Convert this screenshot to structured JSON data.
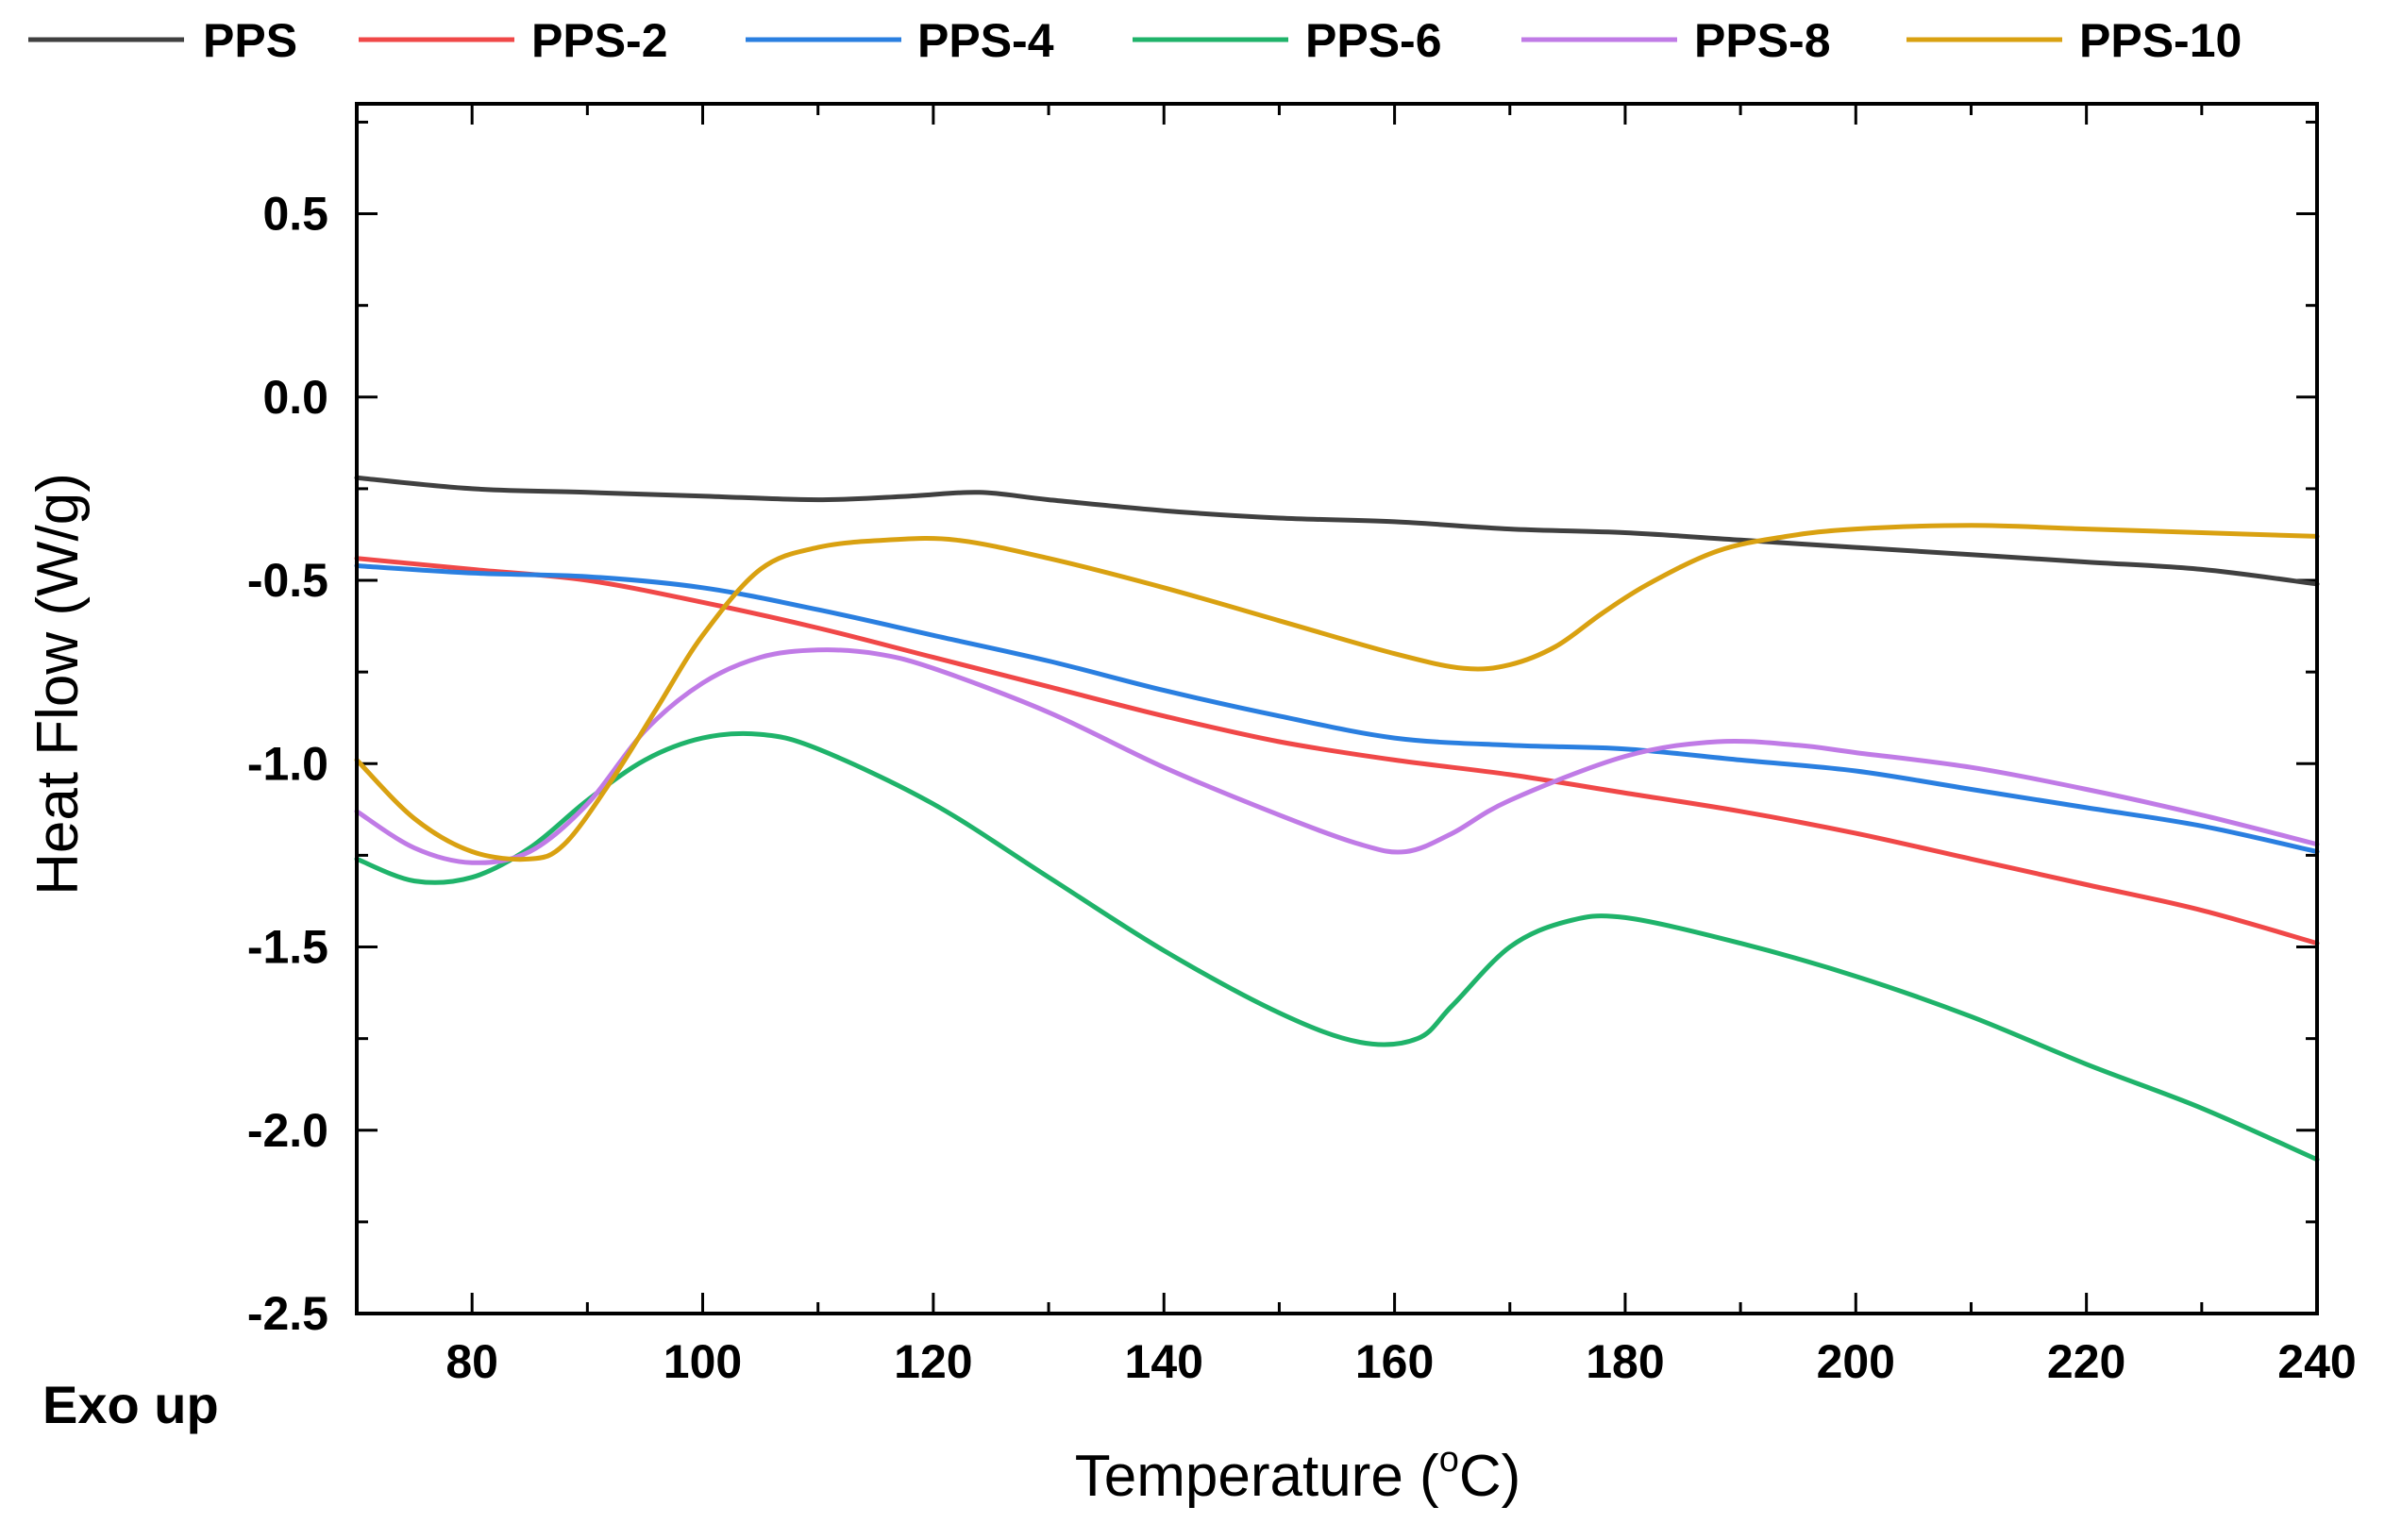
{
  "chart_data": {
    "type": "line",
    "title": "",
    "xlabel": "Temperature (",
    "xlabel_sup": "o",
    "xlabel_suffix": "C)",
    "ylabel": "Heat Flow (W/g)",
    "annotation": "Exo up",
    "xlim": [
      70,
      240
    ],
    "ylim": [
      -2.5,
      0.8
    ],
    "x_ticks": [
      80,
      100,
      120,
      140,
      160,
      180,
      200,
      220,
      240
    ],
    "y_ticks": [
      -2.5,
      -2.0,
      -1.5,
      -1.0,
      -0.5,
      0.0,
      0.5
    ],
    "x_tick_labels": [
      "80",
      "100",
      "120",
      "140",
      "160",
      "180",
      "200",
      "220",
      "240"
    ],
    "y_tick_labels": [
      "-2.5",
      "-2.0",
      "-1.5",
      "-1.0",
      "-0.5",
      "0.0",
      "0.5"
    ],
    "legend_position": "top",
    "series": [
      {
        "name": "PPS",
        "color": "#404040",
        "points": [
          [
            70,
            -0.22
          ],
          [
            80,
            -0.25
          ],
          [
            90,
            -0.26
          ],
          [
            100,
            -0.27
          ],
          [
            110,
            -0.28
          ],
          [
            118,
            -0.27
          ],
          [
            124,
            -0.26
          ],
          [
            130,
            -0.28
          ],
          [
            140,
            -0.31
          ],
          [
            150,
            -0.33
          ],
          [
            160,
            -0.34
          ],
          [
            170,
            -0.36
          ],
          [
            180,
            -0.37
          ],
          [
            190,
            -0.39
          ],
          [
            200,
            -0.41
          ],
          [
            210,
            -0.43
          ],
          [
            220,
            -0.45
          ],
          [
            230,
            -0.47
          ],
          [
            240,
            -0.51
          ]
        ]
      },
      {
        "name": "PPS-2",
        "color": "#f04848",
        "points": [
          [
            70,
            -0.44
          ],
          [
            80,
            -0.47
          ],
          [
            90,
            -0.5
          ],
          [
            100,
            -0.56
          ],
          [
            110,
            -0.63
          ],
          [
            120,
            -0.71
          ],
          [
            130,
            -0.79
          ],
          [
            140,
            -0.87
          ],
          [
            150,
            -0.94
          ],
          [
            160,
            -0.99
          ],
          [
            170,
            -1.03
          ],
          [
            180,
            -1.08
          ],
          [
            190,
            -1.13
          ],
          [
            200,
            -1.19
          ],
          [
            210,
            -1.26
          ],
          [
            220,
            -1.33
          ],
          [
            230,
            -1.4
          ],
          [
            240,
            -1.49
          ]
        ]
      },
      {
        "name": "PPS-4",
        "color": "#2a7fe0",
        "points": [
          [
            70,
            -0.46
          ],
          [
            80,
            -0.48
          ],
          [
            90,
            -0.49
          ],
          [
            100,
            -0.52
          ],
          [
            110,
            -0.58
          ],
          [
            120,
            -0.65
          ],
          [
            130,
            -0.72
          ],
          [
            140,
            -0.8
          ],
          [
            150,
            -0.87
          ],
          [
            160,
            -0.93
          ],
          [
            170,
            -0.95
          ],
          [
            180,
            -0.96
          ],
          [
            190,
            -0.99
          ],
          [
            200,
            -1.02
          ],
          [
            210,
            -1.07
          ],
          [
            220,
            -1.12
          ],
          [
            230,
            -1.17
          ],
          [
            240,
            -1.24
          ]
        ]
      },
      {
        "name": "PPS-6",
        "color": "#1fb36a",
        "points": [
          [
            70,
            -1.26
          ],
          [
            75,
            -1.32
          ],
          [
            80,
            -1.31
          ],
          [
            85,
            -1.23
          ],
          [
            90,
            -1.1
          ],
          [
            95,
            -0.99
          ],
          [
            100,
            -0.93
          ],
          [
            105,
            -0.92
          ],
          [
            110,
            -0.96
          ],
          [
            120,
            -1.11
          ],
          [
            130,
            -1.31
          ],
          [
            140,
            -1.51
          ],
          [
            150,
            -1.68
          ],
          [
            157,
            -1.76
          ],
          [
            162,
            -1.75
          ],
          [
            165,
            -1.66
          ],
          [
            170,
            -1.5
          ],
          [
            175,
            -1.43
          ],
          [
            180,
            -1.42
          ],
          [
            190,
            -1.49
          ],
          [
            200,
            -1.58
          ],
          [
            210,
            -1.69
          ],
          [
            220,
            -1.82
          ],
          [
            230,
            -1.94
          ],
          [
            240,
            -2.08
          ]
        ]
      },
      {
        "name": "PPS-8",
        "color": "#c07be6",
        "points": [
          [
            70,
            -1.13
          ],
          [
            75,
            -1.23
          ],
          [
            80,
            -1.27
          ],
          [
            85,
            -1.24
          ],
          [
            90,
            -1.11
          ],
          [
            95,
            -0.91
          ],
          [
            100,
            -0.78
          ],
          [
            105,
            -0.71
          ],
          [
            110,
            -0.69
          ],
          [
            115,
            -0.7
          ],
          [
            120,
            -0.74
          ],
          [
            130,
            -0.86
          ],
          [
            140,
            -1.01
          ],
          [
            150,
            -1.14
          ],
          [
            157,
            -1.22
          ],
          [
            161,
            -1.24
          ],
          [
            165,
            -1.19
          ],
          [
            170,
            -1.1
          ],
          [
            180,
            -0.98
          ],
          [
            188,
            -0.94
          ],
          [
            195,
            -0.95
          ],
          [
            200,
            -0.97
          ],
          [
            210,
            -1.01
          ],
          [
            220,
            -1.07
          ],
          [
            230,
            -1.14
          ],
          [
            240,
            -1.22
          ]
        ]
      },
      {
        "name": "PPS-10",
        "color": "#d9a111",
        "points": [
          [
            70,
            -0.99
          ],
          [
            75,
            -1.15
          ],
          [
            80,
            -1.24
          ],
          [
            85,
            -1.26
          ],
          [
            88,
            -1.22
          ],
          [
            92,
            -1.05
          ],
          [
            96,
            -0.85
          ],
          [
            100,
            -0.65
          ],
          [
            105,
            -0.47
          ],
          [
            110,
            -0.41
          ],
          [
            116,
            -0.39
          ],
          [
            122,
            -0.39
          ],
          [
            130,
            -0.44
          ],
          [
            140,
            -0.52
          ],
          [
            150,
            -0.61
          ],
          [
            160,
            -0.7
          ],
          [
            166,
            -0.74
          ],
          [
            170,
            -0.73
          ],
          [
            174,
            -0.68
          ],
          [
            178,
            -0.59
          ],
          [
            182,
            -0.51
          ],
          [
            188,
            -0.42
          ],
          [
            194,
            -0.38
          ],
          [
            200,
            -0.36
          ],
          [
            210,
            -0.35
          ],
          [
            220,
            -0.36
          ],
          [
            230,
            -0.37
          ],
          [
            240,
            -0.38
          ]
        ]
      }
    ]
  }
}
